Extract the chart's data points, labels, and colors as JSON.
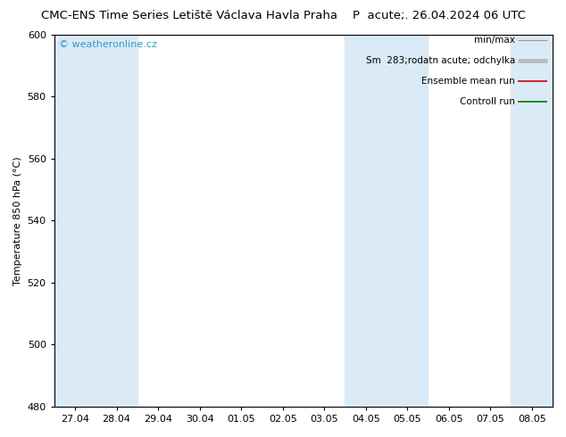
{
  "title_left": "CMC-ENS Time Series Letiště Václava Havla Praha",
  "title_right": "P  acute;. 26.04.2024 06 UTC",
  "ylabel": "Temperature 850 hPa (°C)",
  "ylim": [
    480,
    600
  ],
  "yticks": [
    480,
    500,
    520,
    540,
    560,
    580,
    600
  ],
  "x_labels": [
    "27.04",
    "28.04",
    "29.04",
    "30.04",
    "01.05",
    "02.05",
    "03.05",
    "04.05",
    "05.05",
    "06.05",
    "07.05",
    "08.05"
  ],
  "x_values": [
    0,
    1,
    2,
    3,
    4,
    5,
    6,
    7,
    8,
    9,
    10,
    11
  ],
  "shaded_columns": [
    0,
    1,
    7,
    8,
    11
  ],
  "shaded_color": "#daeaf7",
  "background_color": "#ffffff",
  "plot_bg_color": "#ffffff",
  "legend_min_max_color": "#999999",
  "legend_spread_color": "#bbbbbb",
  "legend_mean_color": "#cc0000",
  "legend_control_color": "#007700",
  "watermark": "© weatheronline.cz",
  "watermark_color": "#3399cc",
  "font_size_title": 9.5,
  "font_size_axis": 8,
  "font_size_ticks": 8,
  "font_size_legend": 7.5,
  "font_size_watermark": 8
}
